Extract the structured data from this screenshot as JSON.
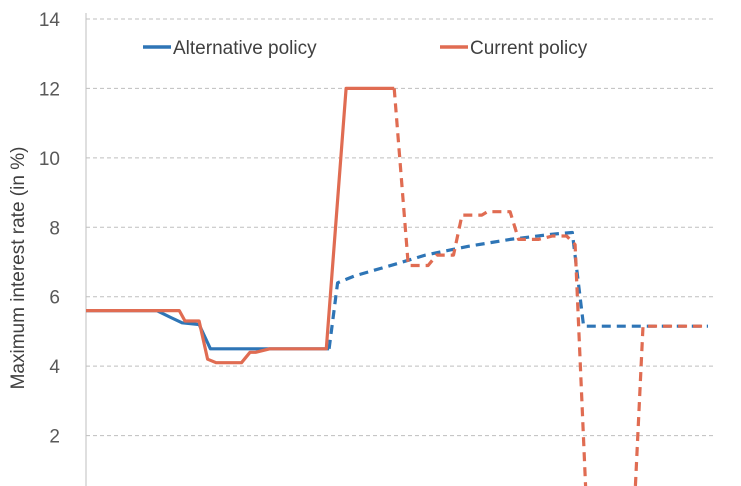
{
  "chart_data": {
    "type": "line",
    "title": "",
    "xlabel": "",
    "ylabel": "Maximum interest rate (in %)",
    "ylim": [
      0,
      14
    ],
    "yticks": [
      2,
      4,
      6,
      8,
      10,
      12,
      14
    ],
    "grid": true,
    "legend_position": "top",
    "x": [
      0,
      1,
      2,
      3,
      4,
      5,
      6,
      7,
      8,
      9,
      10,
      11,
      12,
      13,
      14,
      15,
      16,
      17,
      18,
      19,
      20,
      21,
      22,
      23,
      24,
      25,
      26,
      27,
      28,
      29,
      30,
      31,
      32,
      33,
      34,
      35,
      36,
      37,
      38,
      39,
      40,
      41,
      42,
      43,
      44,
      45,
      46,
      47,
      48,
      49,
      50,
      51,
      52,
      53,
      54,
      55,
      56,
      57,
      58,
      59,
      60,
      61,
      62,
      63,
      64,
      65,
      66,
      67,
      68,
      69,
      70,
      71,
      72,
      73,
      74,
      75,
      76,
      77,
      78,
      79,
      80,
      81,
      82,
      83,
      84,
      85,
      86,
      87,
      88,
      89,
      90,
      91,
      92,
      93,
      94,
      95,
      96,
      97,
      98,
      99,
      100,
      101,
      102,
      103,
      104,
      105,
      106,
      107,
      108,
      109,
      110,
      111,
      112,
      113,
      114,
      115,
      116,
      117,
      118,
      119,
      120,
      121,
      122,
      123,
      124,
      125,
      126,
      127,
      128,
      129,
      130,
      131,
      132,
      133,
      134,
      135,
      136,
      137,
      138,
      139,
      140,
      141,
      142,
      143,
      144,
      145,
      146,
      147,
      148,
      149,
      150,
      151,
      152,
      153,
      154,
      155,
      156,
      157,
      158,
      159,
      160,
      161,
      162,
      163,
      164,
      165,
      166,
      167,
      168,
      169,
      170,
      171,
      172,
      173,
      174,
      175,
      176,
      177,
      178,
      179,
      180,
      181,
      182,
      183,
      184,
      185,
      186,
      187,
      188,
      189,
      190,
      191,
      192,
      193,
      194,
      195,
      196,
      197,
      198,
      199,
      200,
      201,
      202,
      203,
      204,
      205,
      206,
      207,
      208,
      209,
      210,
      211,
      212,
      213,
      214,
      215,
      216,
      217,
      218,
      219,
      220
    ],
    "series": [
      {
        "name": "Alternative policy",
        "color": "#2e75b6",
        "points": [
          [
            0,
            5.6
          ],
          [
            25,
            5.6
          ],
          [
            30,
            5.4
          ],
          [
            34,
            5.25
          ],
          [
            40,
            5.2
          ],
          [
            44,
            4.5
          ],
          [
            55,
            4.5
          ],
          [
            70,
            4.5
          ],
          [
            80,
            4.5
          ],
          [
            86,
            4.5
          ]
        ],
        "dashed_points": [
          [
            86,
            4.5
          ],
          [
            89,
            6.4
          ],
          [
            95,
            6.6
          ],
          [
            110,
            6.95
          ],
          [
            120,
            7.2
          ],
          [
            135,
            7.45
          ],
          [
            150,
            7.65
          ],
          [
            165,
            7.8
          ],
          [
            172,
            7.85
          ],
          [
            176,
            5.15
          ],
          [
            220,
            5.15
          ]
        ]
      },
      {
        "name": "Current policy",
        "color": "#e06c52",
        "points": [
          [
            0,
            5.6
          ],
          [
            33,
            5.6
          ],
          [
            35,
            5.3
          ],
          [
            40,
            5.3
          ],
          [
            43,
            4.2
          ],
          [
            46,
            4.1
          ],
          [
            55,
            4.1
          ],
          [
            58,
            4.4
          ],
          [
            60,
            4.4
          ],
          [
            65,
            4.5
          ],
          [
            85,
            4.5
          ],
          [
            92,
            12
          ],
          [
            109,
            12
          ]
        ],
        "dashed_points": [
          [
            109,
            12
          ],
          [
            114,
            6.9
          ],
          [
            121,
            6.9
          ],
          [
            124,
            7.2
          ],
          [
            130,
            7.2
          ],
          [
            133,
            8.35
          ],
          [
            140,
            8.35
          ],
          [
            142,
            8.45
          ],
          [
            150,
            8.45
          ],
          [
            153,
            7.65
          ],
          [
            160,
            7.65
          ],
          [
            165,
            7.75
          ],
          [
            170,
            7.75
          ],
          [
            173,
            7.5
          ],
          [
            177,
            0
          ],
          [
            194,
            0
          ],
          [
            197,
            5.15
          ],
          [
            220,
            5.15
          ]
        ]
      }
    ]
  }
}
